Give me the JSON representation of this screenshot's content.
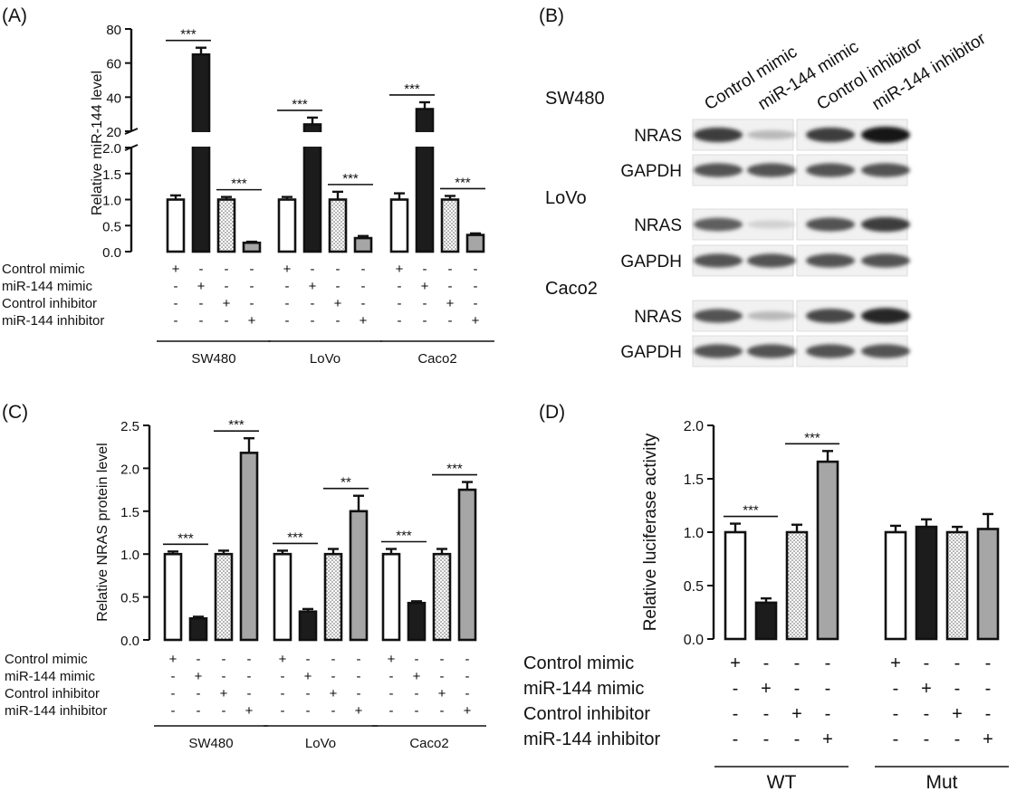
{
  "panel_labels": {
    "a": "(A)",
    "b": "(B)",
    "c": "(C)",
    "d": "(D)"
  },
  "treatments": [
    "Control mimic",
    "miR-144 mimic",
    "Control inhibitor",
    "miR-144 inhibitor"
  ],
  "matrix_a": [
    [
      "+",
      "-",
      "-",
      "-"
    ],
    [
      "-",
      "+",
      "-",
      "-"
    ],
    [
      "-",
      "-",
      "+",
      "-"
    ],
    [
      "-",
      "-",
      "-",
      "+"
    ]
  ],
  "matrix_d": [
    [
      "+",
      "-",
      "-",
      "-"
    ],
    [
      "-",
      "+",
      "-",
      "-"
    ],
    [
      "-",
      "-",
      "+",
      "-"
    ],
    [
      "-",
      "-",
      "-",
      "+"
    ]
  ],
  "colors": {
    "control_mimic": "#ffffff",
    "mir144_mimic": "#1c1c1c",
    "control_inhibitor": "dotted-white",
    "mir144_inhibitor": "#a6a6a6"
  },
  "blot": {
    "lanes": [
      "Control mimic",
      "miR-144 mimic",
      "Control inhibitor",
      "miR-144 inhibitor"
    ],
    "cell_lines": [
      "SW480",
      "LoVo",
      "Caco2"
    ],
    "bands": [
      "NRAS",
      "GAPDH"
    ],
    "intensity": {
      "SW480": {
        "NRAS": [
          0.85,
          0.3,
          0.85,
          1.0
        ],
        "GAPDH": [
          0.75,
          0.75,
          0.75,
          0.75
        ]
      },
      "LoVo": {
        "NRAS": [
          0.7,
          0.2,
          0.75,
          0.85
        ],
        "GAPDH": [
          0.75,
          0.75,
          0.75,
          0.75
        ]
      },
      "Caco2": {
        "NRAS": [
          0.75,
          0.3,
          0.8,
          0.95
        ],
        "GAPDH": [
          0.75,
          0.75,
          0.75,
          0.75
        ]
      }
    }
  },
  "chart_data": [
    {
      "panel": "A",
      "type": "bar",
      "ylabel": "Relative miR-144 level",
      "groups": [
        "SW480",
        "LoVo",
        "Caco2"
      ],
      "series_order": [
        "Control mimic",
        "miR-144 mimic",
        "Control inhibitor",
        "miR-144 inhibitor"
      ],
      "values": [
        [
          1.0,
          65,
          1.0,
          0.17
        ],
        [
          1.0,
          24,
          1.0,
          0.26
        ],
        [
          1.0,
          33,
          1.0,
          0.32
        ]
      ],
      "errors": [
        [
          0.08,
          4,
          0.05,
          0.02
        ],
        [
          0.05,
          4,
          0.15,
          0.04
        ],
        [
          0.12,
          4,
          0.07,
          0.03
        ]
      ],
      "ylim_lower": [
        0,
        2.0
      ],
      "yticks_lower": [
        "0.0",
        "0.5",
        "1.0",
        "1.5",
        "2.0"
      ],
      "ylim_upper": [
        20,
        80
      ],
      "yticks_upper": [
        "20",
        "40",
        "60",
        "80"
      ],
      "significance": [
        [
          "***",
          "***"
        ],
        [
          "***",
          "***"
        ],
        [
          "***",
          "***"
        ]
      ]
    },
    {
      "panel": "C",
      "type": "bar",
      "ylabel": "Relative NRAS protein level",
      "groups": [
        "SW480",
        "LoVo",
        "Caco2"
      ],
      "series_order": [
        "Control mimic",
        "miR-144 mimic",
        "Control inhibitor",
        "miR-144 inhibitor"
      ],
      "values": [
        [
          1.0,
          0.25,
          1.0,
          2.18
        ],
        [
          1.0,
          0.33,
          1.0,
          1.5
        ],
        [
          1.0,
          0.43,
          1.0,
          1.75
        ]
      ],
      "errors": [
        [
          0.03,
          0.02,
          0.04,
          0.17
        ],
        [
          0.04,
          0.03,
          0.06,
          0.18
        ],
        [
          0.06,
          0.02,
          0.06,
          0.09
        ]
      ],
      "ylim": [
        0,
        2.5
      ],
      "yticks": [
        "0.0",
        "0.5",
        "1.0",
        "1.5",
        "2.0",
        "2.5"
      ],
      "significance": [
        [
          "***",
          "***"
        ],
        [
          "***",
          "**"
        ],
        [
          "***",
          "***"
        ]
      ]
    },
    {
      "panel": "D",
      "type": "bar",
      "ylabel": "Relative luciferase activity",
      "groups": [
        "WT",
        "Mut"
      ],
      "series_order": [
        "Control mimic",
        "miR-144 mimic",
        "Control inhibitor",
        "miR-144 inhibitor"
      ],
      "values": [
        [
          1.0,
          0.34,
          1.0,
          1.66
        ],
        [
          1.0,
          1.05,
          1.0,
          1.03
        ]
      ],
      "errors": [
        [
          0.08,
          0.04,
          0.07,
          0.1
        ],
        [
          0.06,
          0.07,
          0.05,
          0.14
        ]
      ],
      "ylim": [
        0,
        2.0
      ],
      "yticks": [
        "0.0",
        "0.5",
        "1.0",
        "1.5",
        "2.0"
      ],
      "significance": [
        [
          "***",
          "***"
        ],
        [
          "",
          ""
        ]
      ]
    }
  ]
}
